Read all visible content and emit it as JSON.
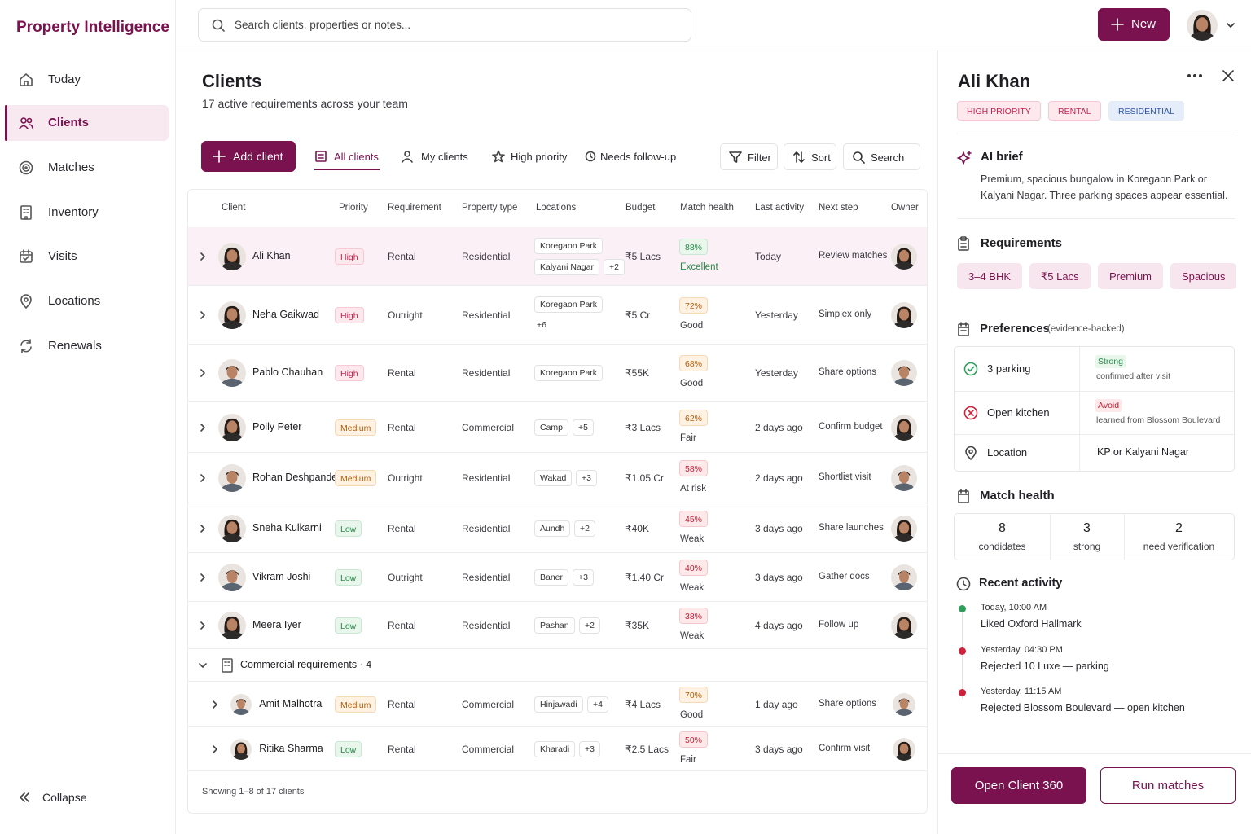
{
  "app": {
    "title": "Property Intelligence"
  },
  "nav": {
    "items": [
      "Today",
      "Clients",
      "Matches",
      "Inventory",
      "Visits",
      "Locations",
      "Renewals"
    ],
    "selected": 1,
    "collapse": "Collapse"
  },
  "topbar": {
    "search_placeholder": "Search clients, properties or notes...",
    "new_button": "New"
  },
  "page": {
    "title": "Clients",
    "subtitle": "17 active requirements across your team"
  },
  "toolbar": {
    "add_button": "Add client",
    "tabs": [
      "All clients",
      "My clients",
      "High priority",
      "Needs follow-up"
    ],
    "selected_tab": 0,
    "actions": [
      "Filter",
      "Sort",
      "Search"
    ]
  },
  "table": {
    "columns": [
      "Client",
      "Priority",
      "Requirement",
      "Property type",
      "Locations",
      "Budget",
      "Match health",
      "Last activity",
      "Next step",
      "Owner"
    ],
    "rows": [
      {
        "client": "Ali Khan",
        "priority": "High",
        "priority_tone": "pink",
        "requirement": "Rental",
        "property_type": "Residential",
        "locations": [
          "Koregaon Park",
          "Kalyani Nagar"
        ],
        "more": "+2",
        "budget": "₹5 Lacs",
        "match": "88%",
        "health": "Excellent",
        "tone": "green",
        "last_activity": "Today",
        "next_step": "Review matches"
      },
      {
        "client": "Neha Gaikwad",
        "priority": "High",
        "priority_tone": "pink",
        "requirement": "Outright",
        "property_type": "Residential",
        "locations": [
          "Koregaon Park"
        ],
        "more": "+6",
        "budget": "₹5 Cr",
        "match": "72%",
        "health": "Good",
        "tone": "orange",
        "last_activity": "Yesterday",
        "next_step": "Simplex only"
      },
      {
        "client": "Pablo Chauhan",
        "priority": "High",
        "priority_tone": "pink",
        "requirement": "Rental",
        "property_type": "Residential",
        "locations": [
          "Koregaon Park"
        ],
        "budget": "₹55K",
        "match": "68%",
        "health": "Good",
        "tone": "orange",
        "last_activity": "Yesterday",
        "next_step": "Share options"
      },
      {
        "client": "Polly Peter",
        "priority": "Medium",
        "priority_tone": "orange",
        "requirement": "Rental",
        "property_type": "Commercial",
        "locations": [
          "Camp"
        ],
        "more": "+5",
        "budget": "₹3 Lacs",
        "match": "62%",
        "health": "Fair",
        "tone": "orange",
        "last_activity": "2 days ago",
        "next_step": "Confirm budget"
      },
      {
        "client": "Rohan Deshpande",
        "priority": "Medium",
        "priority_tone": "orange",
        "requirement": "Outright",
        "property_type": "Residential",
        "locations": [
          "Wakad"
        ],
        "more": "+3",
        "budget": "₹1.05 Cr",
        "match": "58%",
        "health": "At risk",
        "tone": "red",
        "last_activity": "2 days ago",
        "next_step": "Shortlist visit"
      },
      {
        "client": "Sneha Kulkarni",
        "priority": "Low",
        "priority_tone": "green",
        "requirement": "Rental",
        "property_type": "Residential",
        "locations": [
          "Aundh"
        ],
        "more": "+2",
        "budget": "₹40K",
        "match": "45%",
        "health": "Weak",
        "tone": "red",
        "last_activity": "3 days ago",
        "next_step": "Share launches"
      },
      {
        "client": "Vikram Joshi",
        "priority": "Low",
        "priority_tone": "green",
        "requirement": "Outright",
        "property_type": "Residential",
        "locations": [
          "Baner"
        ],
        "more": "+3",
        "budget": "₹1.40 Cr",
        "match": "40%",
        "health": "Weak",
        "tone": "red",
        "last_activity": "3 days ago",
        "next_step": "Gather docs"
      },
      {
        "client": "Meera Iyer",
        "priority": "Low",
        "priority_tone": "green",
        "requirement": "Rental",
        "property_type": "Residential",
        "locations": [
          "Pashan"
        ],
        "more": "+2",
        "budget": "₹35K",
        "match": "38%",
        "health": "Weak",
        "tone": "red",
        "last_activity": "4 days ago",
        "next_step": "Follow up"
      }
    ],
    "group": {
      "label": "Commercial requirements · 4",
      "rows": [
        {
          "client": "Amit Malhotra",
          "priority": "Medium",
          "priority_tone": "orange",
          "requirement": "Rental",
          "property_type": "Commercial",
          "locations": [
            "Hinjawadi"
          ],
          "more": "+4",
          "budget": "₹4 Lacs",
          "match": "70%",
          "health": "Good",
          "tone": "orange",
          "last_activity": "1 day ago",
          "next_step": "Share options"
        },
        {
          "client": "Ritika Sharma",
          "priority": "Low",
          "priority_tone": "green",
          "requirement": "Rental",
          "property_type": "Commercial",
          "locations": [
            "Kharadi"
          ],
          "more": "+3",
          "budget": "₹2.5 Lacs",
          "match": "50%",
          "health": "Fair",
          "tone": "red",
          "last_activity": "3 days ago",
          "next_step": "Confirm visit"
        }
      ]
    },
    "footer": "Showing 1–8 of 17 clients"
  },
  "detail": {
    "name": "Ali Khan",
    "tags": [
      {
        "text": "HIGH PRIORITY",
        "tone": "pink"
      },
      {
        "text": "RENTAL",
        "tone": "pink"
      },
      {
        "text": "RESIDENTIAL",
        "tone": "blue"
      }
    ],
    "ai_brief": {
      "title": "AI brief",
      "text": "Premium, spacious bungalow in Koregaon Park or Kalyani Nagar. Three parking spaces appear essential."
    },
    "requirements": {
      "title": "Requirements",
      "chips": [
        "3–4 BHK",
        "₹5 Lacs",
        "Premium",
        "Spacious"
      ]
    },
    "preferences": {
      "title": "Preferences",
      "note": "(evidence-backed)",
      "rows": [
        {
          "label": "3 parking",
          "status": "Strong",
          "tone": "green",
          "detail": "confirmed after visit"
        },
        {
          "label": "Open kitchen",
          "status": "Avoid",
          "tone": "red",
          "detail": "learned from Blossom Boulevard"
        },
        {
          "label": "Location",
          "value": "KP or Kalyani Nagar"
        }
      ]
    },
    "match_health": {
      "title": "Match health",
      "stats": [
        {
          "value": 8,
          "label": "condidates"
        },
        {
          "value": 3,
          "label": "strong"
        },
        {
          "value": 2,
          "label": "need verification"
        }
      ]
    },
    "recent_activity": {
      "title": "Recent activity",
      "items": [
        {
          "time": "Today, 10:00 AM",
          "text": "Liked Oxford Hallmark",
          "color": "#2e9e5b"
        },
        {
          "time": "Yesterday, 04:30 PM",
          "text": "Rejected 10 Luxe — parking",
          "color": "#d0213a"
        },
        {
          "time": "Yesterday, 11:15 AM",
          "text": "Rejected Blossom Boulevard — open kitchen",
          "color": "#d0213a"
        }
      ]
    },
    "actions": [
      "Open Client 360",
      "Run matches"
    ]
  }
}
